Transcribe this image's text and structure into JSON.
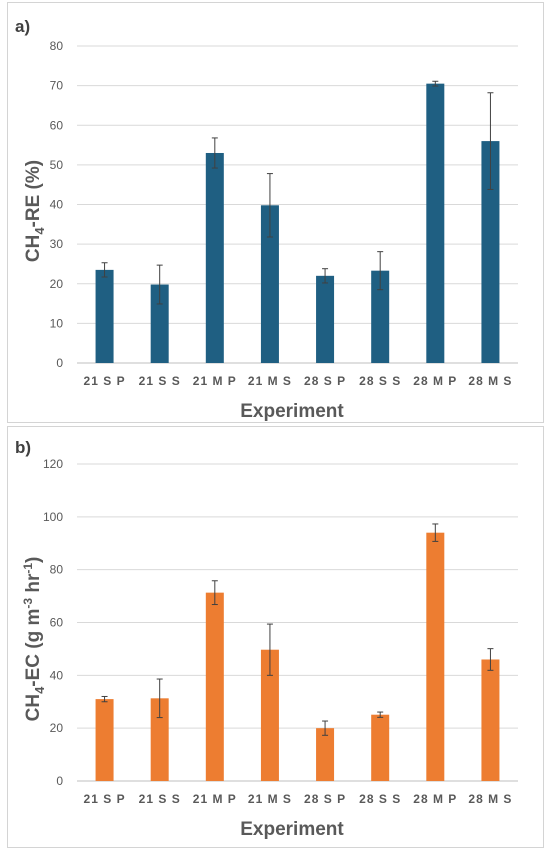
{
  "chart_data": [
    {
      "panel": "a)",
      "type": "bar",
      "categories": [
        "21 S P",
        "21 S S",
        "21 M P",
        "21 M S",
        "28 S P",
        "28 S S",
        "28 M P",
        "28 M S"
      ],
      "values": [
        23.5,
        19.8,
        53.0,
        39.8,
        22.0,
        23.3,
        70.5,
        56.0
      ],
      "errors": [
        1.8,
        4.9,
        3.8,
        8.0,
        1.8,
        4.8,
        0.6,
        12.2
      ],
      "ylim": [
        0,
        80
      ],
      "yticks": [
        0,
        10,
        20,
        30,
        40,
        50,
        60,
        70,
        80
      ],
      "xlabel": "Experiment",
      "ylabel_main": "CH",
      "ylabel_sub": "4",
      "ylabel_rest": "-RE (%)",
      "color": "#1f5f82",
      "grid": true
    },
    {
      "panel": "b)",
      "type": "bar",
      "categories": [
        "21 S P",
        "21 S S",
        "21 M P",
        "21 M S",
        "28 S P",
        "28 S S",
        "28 M P",
        "28 M S"
      ],
      "values": [
        31.0,
        31.3,
        71.3,
        49.7,
        20.0,
        25.1,
        94.0,
        46.0
      ],
      "errors": [
        1.0,
        7.3,
        4.5,
        9.7,
        2.7,
        1.0,
        3.3,
        4.1
      ],
      "ylim": [
        0,
        120
      ],
      "yticks": [
        0,
        20,
        40,
        60,
        80,
        100,
        120
      ],
      "xlabel": "Experiment",
      "ylabel_main": "CH",
      "ylabel_sub": "4",
      "ylabel_rest": "-EC (g m",
      "ylabel_sup1": "-3",
      "ylabel_mid": " hr",
      "ylabel_sup2": "-1",
      "ylabel_end": ")",
      "color": "#ed7d31",
      "grid": true
    }
  ]
}
